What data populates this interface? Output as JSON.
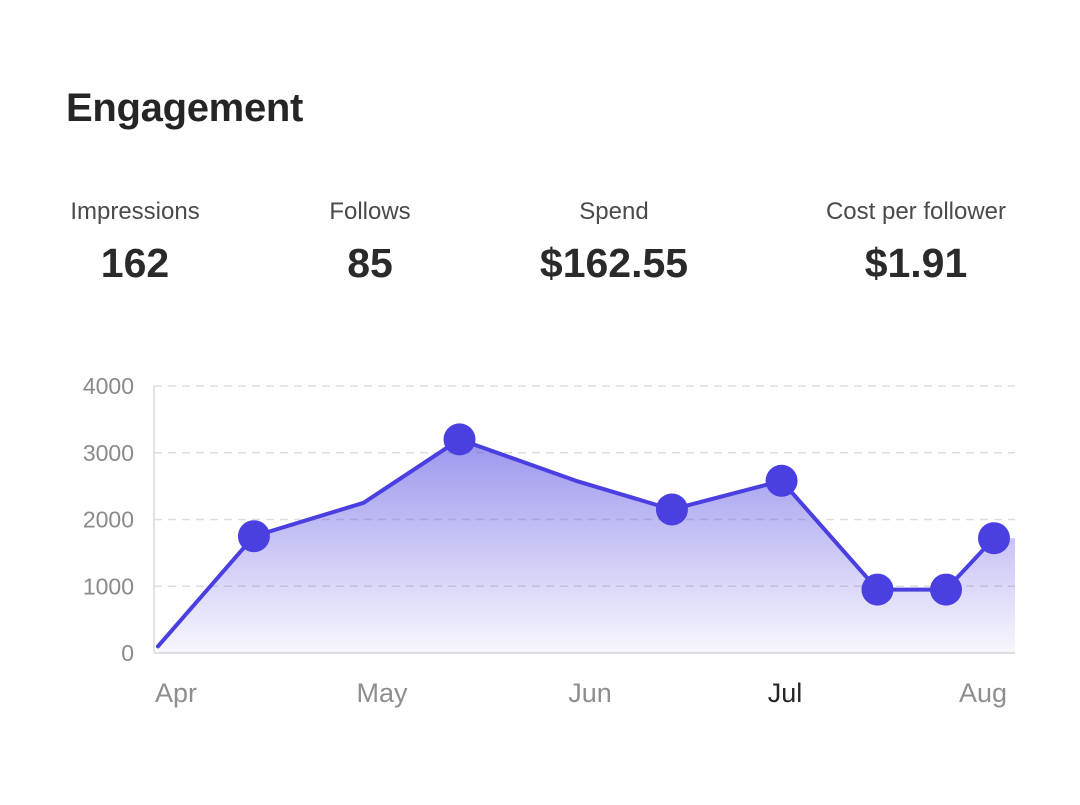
{
  "title": "Engagement",
  "stats": [
    {
      "label": "Impressions",
      "value": "162"
    },
    {
      "label": "Follows",
      "value": "85"
    },
    {
      "label": "Spend",
      "value": "$162.55"
    },
    {
      "label": "Cost per follower",
      "value": "$1.91"
    }
  ],
  "colors": {
    "accent": "#4a3fe0",
    "grid": "#dedede",
    "axis": "#d8d8d8"
  },
  "chart_data": {
    "type": "area",
    "title": "",
    "xlabel": "",
    "ylabel": "",
    "ylim": [
      0,
      4000
    ],
    "yticks": [
      "4000",
      "3000",
      "2000",
      "1000",
      "0"
    ],
    "x_tick_labels": [
      "Apr",
      "May",
      "Jun",
      "Jul",
      "Aug"
    ],
    "highlighted_x_tick": "Jul",
    "grid": true,
    "series": [
      {
        "x": [
          "Apr 1",
          "Apr 15",
          "May 1",
          "May 15",
          "Jun 1",
          "Jun 15",
          "Jul 1",
          "Jul 15",
          "Jul 25",
          "Aug 1"
        ],
        "values": [
          100,
          1750,
          2250,
          3200,
          2580,
          2150,
          2580,
          950,
          950,
          1720
        ],
        "marked": [
          false,
          true,
          false,
          true,
          false,
          true,
          true,
          true,
          true,
          true
        ]
      }
    ]
  }
}
